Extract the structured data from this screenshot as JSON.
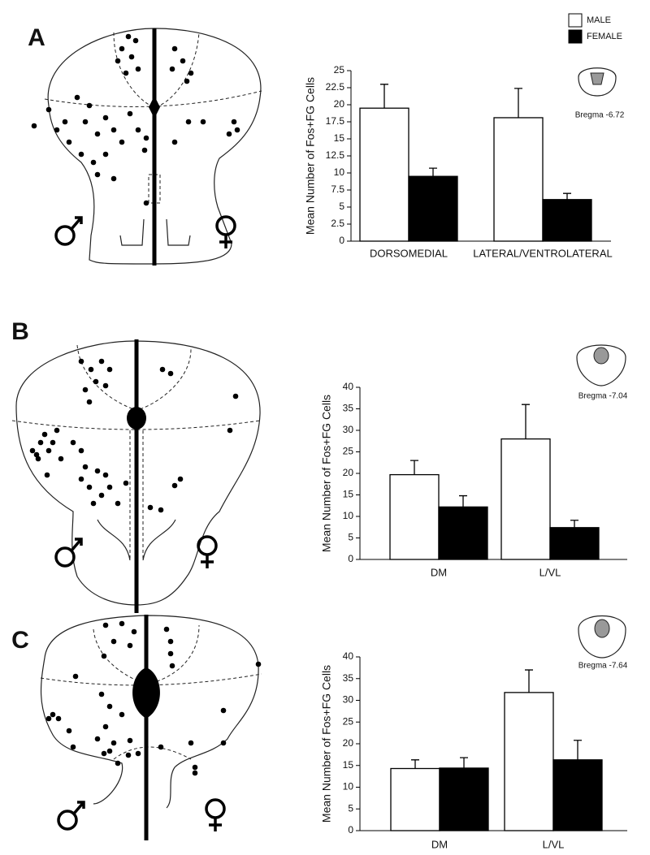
{
  "chart_data": [
    {
      "type": "bar",
      "panel_label": "A",
      "annotation": "Bregma -6.72",
      "ylabel": "Mean Number of Fos+FG Cells",
      "categories": [
        "DORSOMEDIAL",
        "LATERAL/VENTROLATERAL"
      ],
      "series": [
        {
          "name": "MALE",
          "color": "#ffffff",
          "values": [
            19.5,
            18.1
          ],
          "errors": [
            3.5,
            4.3
          ]
        },
        {
          "name": "FEMALE",
          "color": "#000000",
          "values": [
            9.5,
            6.1
          ],
          "errors": [
            1.2,
            0.9
          ]
        }
      ],
      "ylim": [
        0,
        25
      ],
      "yticks": [
        0,
        2.5,
        5,
        7.5,
        10,
        12.5,
        15,
        17.5,
        20,
        22.5,
        25
      ]
    },
    {
      "type": "bar",
      "panel_label": "B",
      "annotation": "Bregma -7.04",
      "ylabel": "Mean Number of Fos+FG Cells",
      "categories": [
        "DM",
        "L/VL"
      ],
      "series": [
        {
          "color": "#ffffff",
          "values": [
            19.7,
            28
          ],
          "errors": [
            3.3,
            8
          ]
        },
        {
          "color": "#000000",
          "values": [
            12.2,
            7.4
          ],
          "errors": [
            2.6,
            1.7
          ]
        }
      ],
      "ylim": [
        0,
        40
      ],
      "yticks": [
        0,
        5,
        10,
        15,
        20,
        25,
        30,
        35,
        40
      ]
    },
    {
      "type": "bar",
      "panel_label": "C",
      "annotation": "Bregma -7.64",
      "ylabel": "Mean Number of Fos+FG Cells",
      "categories": [
        "DM",
        "L/VL"
      ],
      "series": [
        {
          "color": "#ffffff",
          "values": [
            14.3,
            31.8
          ],
          "errors": [
            2,
            5.2
          ]
        },
        {
          "color": "#000000",
          "values": [
            14.4,
            16.3
          ],
          "errors": [
            2.4,
            4.5
          ]
        }
      ],
      "ylim": [
        0,
        40
      ],
      "yticks": [
        0,
        5,
        10,
        15,
        20,
        25,
        30,
        35,
        40
      ]
    }
  ]
}
